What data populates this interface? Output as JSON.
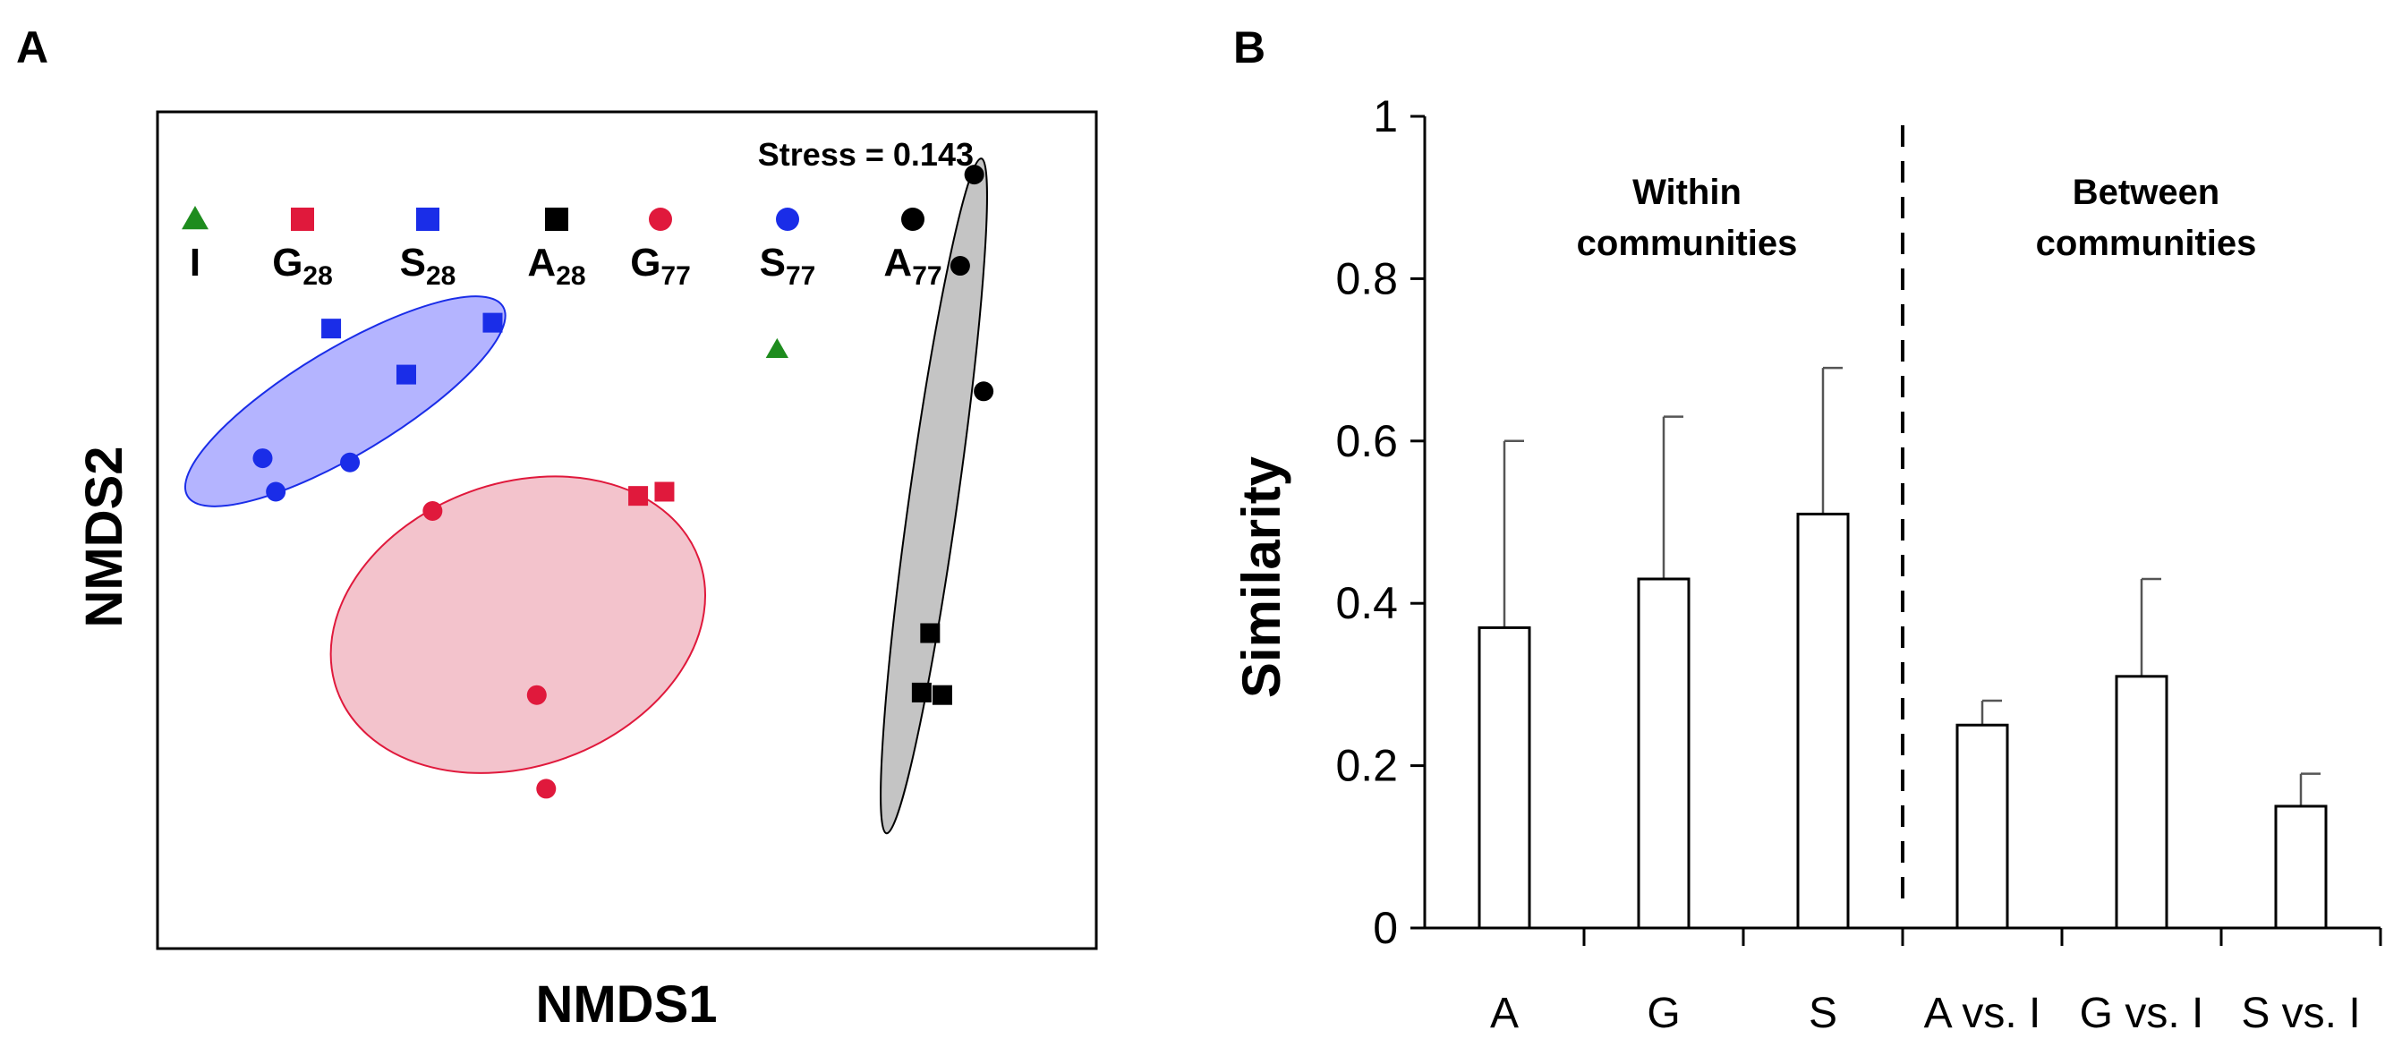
{
  "chart_data": [
    {
      "panel": "A",
      "type": "scatter",
      "xlabel": "NMDS1",
      "ylabel": "NMDS2",
      "annotation": "Stress = 0.143",
      "legend": [
        {
          "base": "I",
          "sub": "",
          "marker": "triangle",
          "color": "#1e8c1e"
        },
        {
          "base": "G",
          "sub": "28",
          "marker": "square",
          "color": "#e0193c"
        },
        {
          "base": "S",
          "sub": "28",
          "marker": "square",
          "color": "#1a2de8"
        },
        {
          "base": "A",
          "sub": "28",
          "marker": "square",
          "color": "#000000"
        },
        {
          "base": "G",
          "sub": "77",
          "marker": "circle",
          "color": "#e0193c"
        },
        {
          "base": "S",
          "sub": "77",
          "marker": "circle",
          "color": "#1a2de8"
        },
        {
          "base": "A",
          "sub": "77",
          "marker": "circle",
          "color": "#000000"
        }
      ],
      "xlim": [
        0,
        100
      ],
      "ylim": [
        0,
        100
      ],
      "groups": [
        {
          "name": "S",
          "color": "#1a2de8",
          "fill": "#b4b4ff",
          "ellipse": {
            "cx": 20,
            "cy": 65.4,
            "rx": 19.6,
            "ry": 6.3,
            "angle": -31
          },
          "points": [
            {
              "x": 18.5,
              "y": 74.1,
              "marker": "square"
            },
            {
              "x": 26.5,
              "y": 68.6,
              "marker": "square"
            },
            {
              "x": 35.7,
              "y": 74.8,
              "marker": "square"
            },
            {
              "x": 11.2,
              "y": 58.6,
              "marker": "circle"
            },
            {
              "x": 12.6,
              "y": 54.6,
              "marker": "circle"
            },
            {
              "x": 20.5,
              "y": 58.1,
              "marker": "circle"
            }
          ]
        },
        {
          "name": "G",
          "color": "#e0193c",
          "fill": "#f3c3cc",
          "ellipse": {
            "cx": 38.4,
            "cy": 38.7,
            "rx": 20.5,
            "ry": 16.9,
            "angle": -20
          },
          "points": [
            {
              "x": 29.3,
              "y": 52.3,
              "marker": "circle"
            },
            {
              "x": 51.2,
              "y": 54.1,
              "marker": "square"
            },
            {
              "x": 54.0,
              "y": 54.6,
              "marker": "square"
            },
            {
              "x": 40.4,
              "y": 30.3,
              "marker": "circle"
            },
            {
              "x": 41.4,
              "y": 19.1,
              "marker": "circle"
            }
          ]
        },
        {
          "name": "A",
          "color": "#000000",
          "fill": "#c4c4c4",
          "ellipse": {
            "cx": 82.7,
            "cy": 54.1,
            "rx": 36.3,
            "ry": 2.9,
            "angle": -82
          },
          "points": [
            {
              "x": 87.0,
              "y": 92.5,
              "marker": "circle"
            },
            {
              "x": 85.5,
              "y": 81.6,
              "marker": "circle"
            },
            {
              "x": 88.0,
              "y": 66.6,
              "marker": "circle"
            },
            {
              "x": 82.3,
              "y": 37.7,
              "marker": "square"
            },
            {
              "x": 81.4,
              "y": 30.6,
              "marker": "square"
            },
            {
              "x": 83.6,
              "y": 30.3,
              "marker": "square"
            }
          ]
        },
        {
          "name": "I",
          "color": "#1e8c1e",
          "fill": "none",
          "ellipse": null,
          "points": [
            {
              "x": 66.0,
              "y": 71.6,
              "marker": "triangle"
            }
          ]
        }
      ]
    },
    {
      "panel": "B",
      "type": "bar",
      "ylabel": "Similarity",
      "ylim": [
        0,
        1
      ],
      "yticks": [
        "0",
        "0.2",
        "0.4",
        "0.6",
        "0.8",
        "1"
      ],
      "categories": [
        "A",
        "G",
        "S",
        "A vs. I",
        "G vs. I",
        "S vs. I"
      ],
      "values": [
        0.37,
        0.43,
        0.51,
        0.25,
        0.31,
        0.15
      ],
      "errors": [
        0.23,
        0.2,
        0.18,
        0.03,
        0.12,
        0.04
      ],
      "groups": [
        {
          "label_line1": "Within",
          "label_line2": "communities"
        },
        {
          "label_line1": "Between",
          "label_line2": "communities"
        }
      ]
    }
  ],
  "panel_labels": [
    "A",
    "B"
  ]
}
